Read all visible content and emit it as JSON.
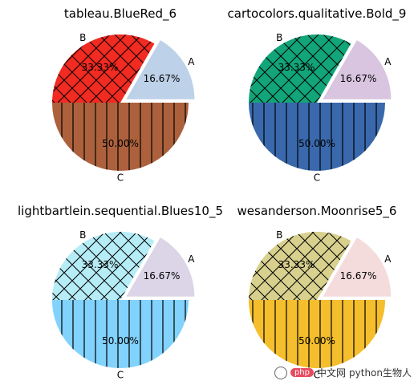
{
  "chart_data": [
    {
      "type": "pie",
      "title": "tableau.BlueRed_6",
      "categories": [
        "A",
        "B",
        "C"
      ],
      "values": [
        16.67,
        33.33,
        50.0
      ],
      "value_labels": [
        "16.67%",
        "33.33%",
        "50.00%"
      ],
      "explode": [
        0.1,
        0.0,
        0.0
      ],
      "hatches": [
        "none",
        "cross",
        "vertical"
      ],
      "colors": [
        "#bdd1e8",
        "#f12a22",
        "#ac613c"
      ]
    },
    {
      "type": "pie",
      "title": "cartocolors.qualitative.Bold_9",
      "categories": [
        "A",
        "B",
        "C"
      ],
      "values": [
        16.67,
        33.33,
        50.0
      ],
      "value_labels": [
        "16.67%",
        "33.33%",
        "50.00%"
      ],
      "explode": [
        0.1,
        0.0,
        0.0
      ],
      "hatches": [
        "none",
        "cross",
        "vertical"
      ],
      "colors": [
        "#d9c5e0",
        "#11a579",
        "#3969ac"
      ]
    },
    {
      "type": "pie",
      "title": "lightbartlein.sequential.Blues10_5",
      "categories": [
        "A",
        "B",
        "C"
      ],
      "values": [
        16.67,
        33.33,
        50.0
      ],
      "value_labels": [
        "16.67%",
        "33.33%",
        "50.00%"
      ],
      "explode": [
        0.1,
        0.0,
        0.0
      ],
      "hatches": [
        "none",
        "cross",
        "vertical"
      ],
      "colors": [
        "#dbd5e7",
        "#b5ecf6",
        "#81d2fc"
      ]
    },
    {
      "type": "pie",
      "title": "wesanderson.Moonrise5_6",
      "categories": [
        "A",
        "B",
        "C"
      ],
      "values": [
        16.67,
        33.33,
        50.0
      ],
      "value_labels": [
        "16.67%",
        "33.33%",
        "50.00%"
      ],
      "explode": [
        0.1,
        0.0,
        0.0
      ],
      "hatches": [
        "none",
        "cross",
        "vertical"
      ],
      "colors": [
        "#f5dcdc",
        "#d8d08d",
        "#f4be2c"
      ]
    }
  ],
  "watermark": {
    "php_badge": "php",
    "site_text": "中文网",
    "account_text": "python生物人"
  }
}
